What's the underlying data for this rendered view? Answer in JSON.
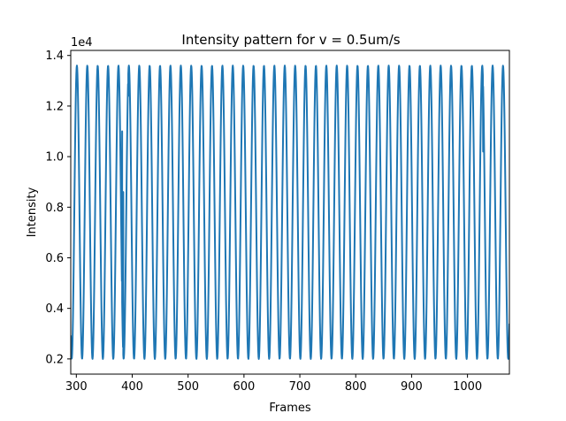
{
  "chart_data": {
    "type": "line",
    "title": "Intensity pattern for v = 0.5um/s",
    "xlabel": "Frames",
    "ylabel": "Intensity",
    "y_offset_label": "1e4",
    "xlim": [
      290,
      1075
    ],
    "ylim": [
      0.14,
      1.42
    ],
    "x_ticks": [
      300,
      400,
      500,
      600,
      700,
      800,
      900,
      1000
    ],
    "y_ticks": [
      0.2,
      0.4,
      0.6,
      0.8,
      1.0,
      1.2,
      1.4
    ],
    "x_tick_labels": [
      "300",
      "400",
      "500",
      "600",
      "700",
      "800",
      "900",
      "1000"
    ],
    "y_tick_labels": [
      "0.2",
      "0.4",
      "0.6",
      "0.8",
      "1.0",
      "1.2",
      "1.4"
    ],
    "grid": false,
    "line_color": "#1f77b4",
    "oscillation": {
      "x_start": 290,
      "x_end": 1075,
      "period_frames": 18.6,
      "min_value": 0.2,
      "max_value": 1.36,
      "first_peak_frame": 301
    },
    "anomalies": [
      {
        "x": 382,
        "y": 1.1
      },
      {
        "x": 384,
        "y": 0.86
      },
      {
        "x": 393,
        "y": 1.24
      },
      {
        "x": 1028,
        "y": 1.02
      }
    ]
  }
}
